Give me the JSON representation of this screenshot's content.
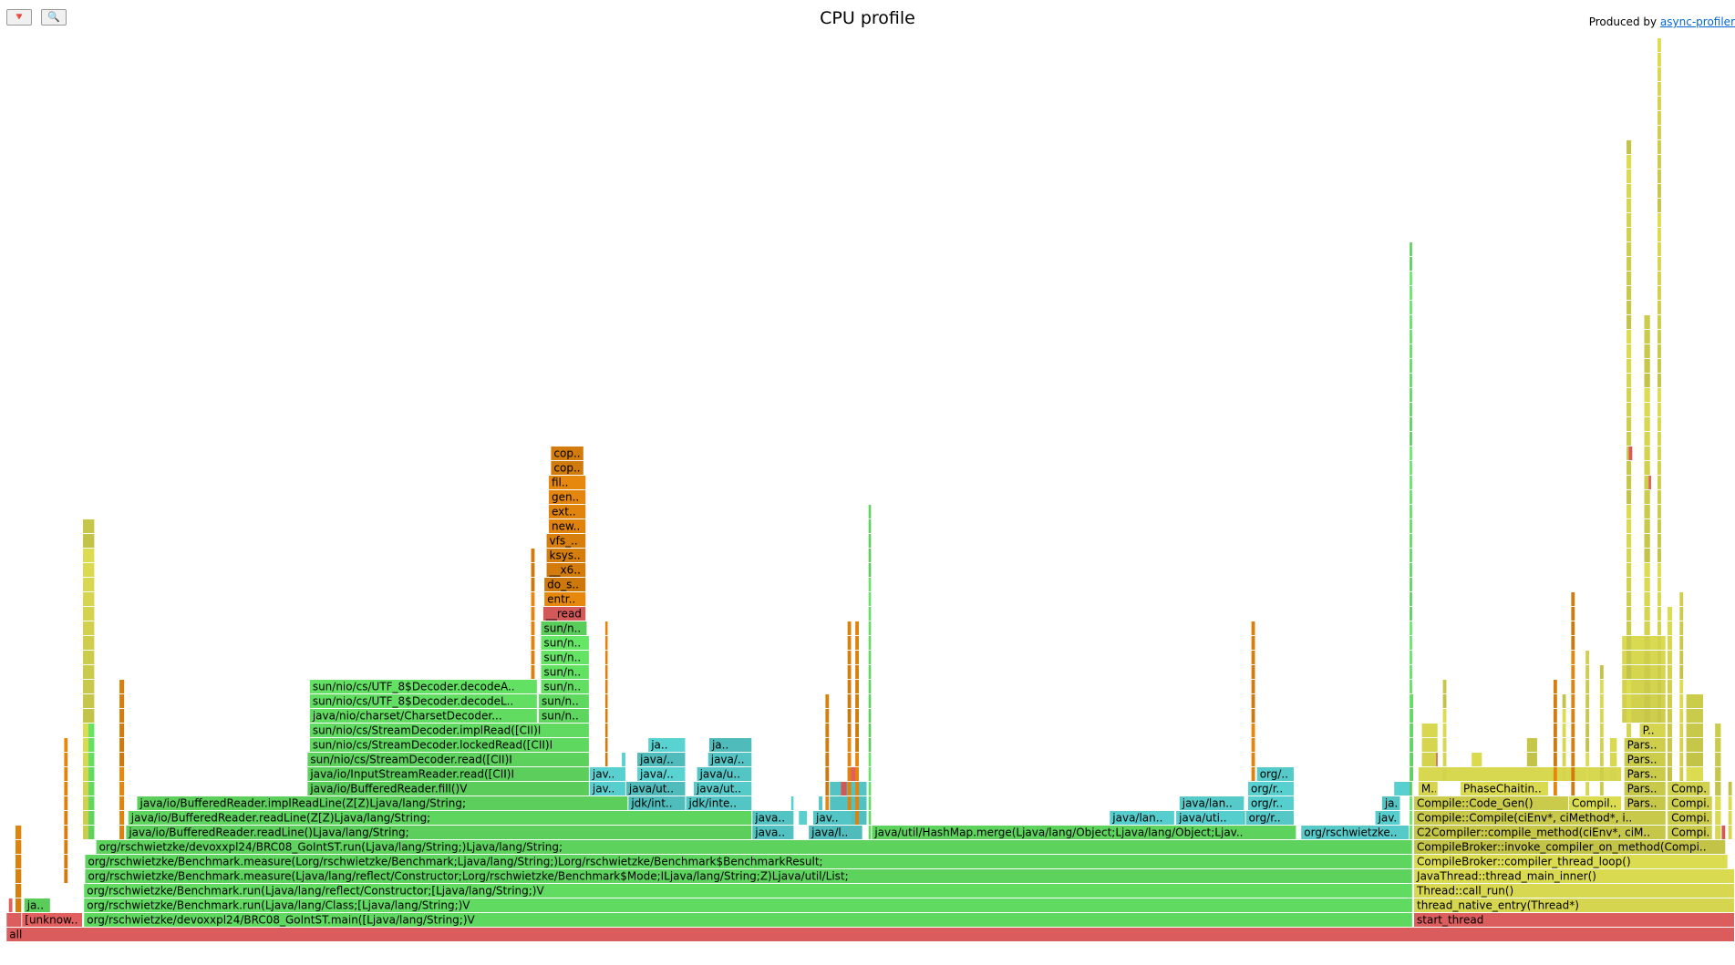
{
  "header": {
    "title": "CPU profile",
    "produced_by": "Produced by",
    "link": "async-profiler",
    "reverse_button": "🔻",
    "search_button": "🔍"
  },
  "frames": [
    {
      "label": "all"
    },
    {
      "label": "[unknow.."
    },
    {
      "label": "org/rschwietzke/devoxxpl24/BRC08_GoIntST.main([Ljava/lang/String;)V"
    },
    {
      "label": "start_thread"
    },
    {
      "label": "ja.."
    },
    {
      "label": "org/rschwietzke/Benchmark.run(Ljava/lang/Class;[Ljava/lang/String;)V"
    },
    {
      "label": "thread_native_entry(Thread*)"
    },
    {
      "label": "org/rschwietzke/Benchmark.run(Ljava/lang/reflect/Constructor;[Ljava/lang/String;)V"
    },
    {
      "label": "Thread::call_run()"
    },
    {
      "label": "org/rschwietzke/Benchmark.measure(Ljava/lang/reflect/Constructor;Lorg/rschwietzke/Benchmark$Mode;ILjava/lang/String;Z)Ljava/util/List;"
    },
    {
      "label": "JavaThread::thread_main_inner()"
    },
    {
      "label": "org/rschwietzke/Benchmark.measure(Lorg/rschwietzke/Benchmark;Ljava/lang/String;)Lorg/rschwietzke/Benchmark$BenchmarkResult;"
    },
    {
      "label": "CompileBroker::compiler_thread_loop()"
    },
    {
      "label": "org/rschwietzke/devoxxpl24/BRC08_GoIntST.run(Ljava/lang/String;)Ljava/lang/String;"
    },
    {
      "label": "CompileBroker::invoke_compiler_on_method(Compi.."
    },
    {
      "label": "java/io/BufferedReader.readLine()Ljava/lang/String;"
    },
    {
      "label": "java.."
    },
    {
      "label": "java/l.."
    },
    {
      "label": "java/util/HashMap.merge(Ljava/lang/Object;Ljava/lang/Object;Ljav.."
    },
    {
      "label": "org/rschwietzke.."
    },
    {
      "label": "C2Compiler::compile_method(ciEnv*, ciM.."
    },
    {
      "label": "Compi.."
    },
    {
      "label": "java/io/BufferedReader.readLine(Z[Z)Ljava/lang/String;"
    },
    {
      "label": "java.."
    },
    {
      "label": "jav.."
    },
    {
      "label": "java/lan.."
    },
    {
      "label": "java/uti.."
    },
    {
      "label": "org/r.."
    },
    {
      "label": "jav.."
    },
    {
      "label": "Compile::Compile(ciEnv*, ciMethod*, i.."
    },
    {
      "label": "Compi.."
    },
    {
      "label": "java/io/BufferedReader.implReadLine(Z[Z)Ljava/lang/String;"
    },
    {
      "label": "jdk/int.."
    },
    {
      "label": "jdk/inte.."
    },
    {
      "label": "java/lan.."
    },
    {
      "label": "org/r.."
    },
    {
      "label": "ja.."
    },
    {
      "label": "Compile::Code_Gen()"
    },
    {
      "label": "Compil.."
    },
    {
      "label": "Pars.."
    },
    {
      "label": "Compi.."
    },
    {
      "label": "java/io/BufferedReader.fill()V"
    },
    {
      "label": "jav.."
    },
    {
      "label": "java/ut.."
    },
    {
      "label": "java/ut.."
    },
    {
      "label": "org/r.."
    },
    {
      "label": "M.."
    },
    {
      "label": "PhaseChaitin.."
    },
    {
      "label": "Pars.."
    },
    {
      "label": "Comp.."
    },
    {
      "label": "java/io/InputStreamReader.read([CII)I"
    },
    {
      "label": "jav.."
    },
    {
      "label": "java/.."
    },
    {
      "label": "java/u.."
    },
    {
      "label": "org/.."
    },
    {
      "label": "Pars.."
    },
    {
      "label": "sun/nio/cs/StreamDecoder.read([CII)I"
    },
    {
      "label": "java/.."
    },
    {
      "label": "java/.."
    },
    {
      "label": "Pars.."
    },
    {
      "label": "sun/nio/cs/StreamDecoder.lockedRead([CII)I"
    },
    {
      "label": "ja.."
    },
    {
      "label": "ja.."
    },
    {
      "label": "Pars.."
    },
    {
      "label": "sun/nio/cs/StreamDecoder.implRead([CII)I"
    },
    {
      "label": "P.."
    },
    {
      "label": "java/nio/charset/CharsetDecoder..."
    },
    {
      "label": "sun/n.."
    },
    {
      "label": "sun/nio/cs/UTF_8$Decoder.decodeL.."
    },
    {
      "label": "sun/n.."
    },
    {
      "label": "sun/nio/cs/UTF_8$Decoder.decodeA.."
    },
    {
      "label": "sun/n.."
    },
    {
      "label": "sun/n.."
    },
    {
      "label": "sun/n.."
    },
    {
      "label": "sun/n.."
    },
    {
      "label": "sun/n.."
    },
    {
      "label": "__read"
    },
    {
      "label": "entr.."
    },
    {
      "label": "do_s.."
    },
    {
      "label": "__x6.."
    },
    {
      "label": "ksys.."
    },
    {
      "label": "vfs_.."
    },
    {
      "label": "new.."
    },
    {
      "label": "ext.."
    },
    {
      "label": "gen.."
    },
    {
      "label": "fil.."
    },
    {
      "label": "cop.."
    },
    {
      "label": "cop.."
    }
  ]
}
